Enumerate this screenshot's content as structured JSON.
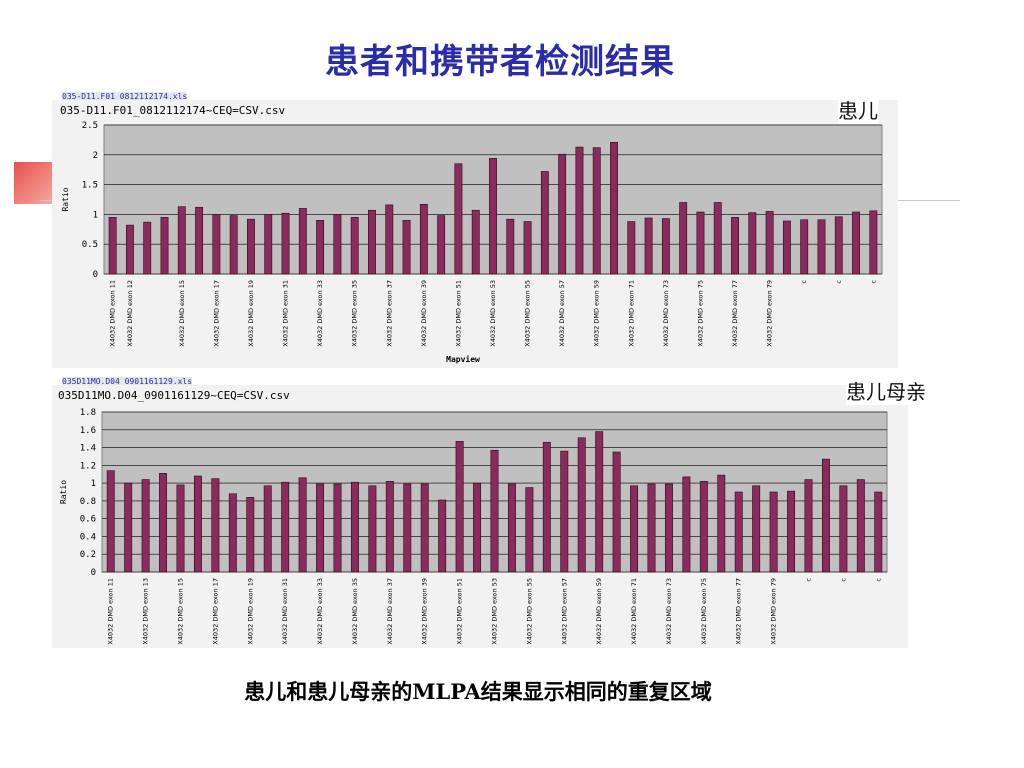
{
  "slide": {
    "title": "患者和携带者检测结果",
    "caption": "患儿和患儿母亲的MLPA结果显示相同的重复区域"
  },
  "colors": {
    "title": "#2b2ca8",
    "bar": "#8b2a5c",
    "plot_bg": "#c0c0c0"
  },
  "chart_data": [
    {
      "type": "bar",
      "panel_label": "患儿",
      "file_tab": "035-D11.F01_0812112174.xls",
      "title": "035-D11.F01_0812112174~CEQ=CSV.csv",
      "xlabel": "Mapview",
      "ylabel": "Ratio",
      "ylim": [
        0,
        2.5
      ],
      "yticks": [
        "0",
        "0.5",
        "1",
        "1.5",
        "2",
        "2.5"
      ],
      "categories": [
        "X4032 DMD exon 11",
        "X4032 DMD exon 12",
        "",
        "",
        "X4032 DMD exon 15",
        "",
        "X4032 DMD exon 17",
        "",
        "X4032 DMD exon 19",
        "",
        "X4032 DMD exon 31",
        "",
        "X4032 DMD exon 33",
        "",
        "X4032 DMD exon 35",
        "",
        "X4032 DMD exon 37",
        "",
        "X4032 DMD exon 39",
        "",
        "X4032 DMD exon 51",
        "",
        "X4032 DMD exon 53",
        "",
        "X4032 DMD exon 55",
        "",
        "X4032 DMD exon 57",
        "",
        "X4032 DMD exon 59",
        "",
        "X4032 DMD exon 71",
        "",
        "X4032 DMD exon 73",
        "",
        "X4032 DMD exon 75",
        "",
        "X4032 DMD exon 77",
        "",
        "X4032 DMD exon 79",
        "",
        "c",
        "",
        "c",
        "",
        "c"
      ],
      "values": [
        0.95,
        0.82,
        0.87,
        0.95,
        1.13,
        1.12,
        1.0,
        0.98,
        0.92,
        1.0,
        1.02,
        1.1,
        0.9,
        1.0,
        0.95,
        1.07,
        1.16,
        0.9,
        1.17,
        0.98,
        1.85,
        1.07,
        1.94,
        0.92,
        0.88,
        1.72,
        2.01,
        2.13,
        2.12,
        2.21,
        0.88,
        0.94,
        0.93,
        1.2,
        1.04,
        1.2,
        0.95,
        1.03,
        1.05,
        0.89,
        0.91,
        0.91,
        0.96,
        1.04,
        1.06
      ]
    },
    {
      "type": "bar",
      "panel_label": "患儿母亲",
      "file_tab": "035D11MO.D04_0901161129.xls",
      "title": "035D11MO.D04_0901161129~CEQ=CSV.csv",
      "xlabel": "",
      "ylabel": "Ratio",
      "ylim": [
        0,
        1.8
      ],
      "yticks": [
        "0",
        "0.2",
        "0.4",
        "0.6",
        "0.8",
        "1",
        "1.2",
        "1.4",
        "1.6",
        "1.8"
      ],
      "categories": [
        "X4032 DMD exon 11",
        "",
        "X4032 DMD exon 13",
        "",
        "X4032 DMD exon 15",
        "",
        "X4032 DMD exon 17",
        "",
        "X4032 DMD exon 19",
        "",
        "X4032 DMD exon 31",
        "",
        "X4032 DMD exon 33",
        "",
        "X4032 DMD exon 35",
        "",
        "X4032 DMD exon 37",
        "",
        "X4032 DMD exon 39",
        "",
        "X4032 DMD exon 51",
        "",
        "X4032 DMD exon 53",
        "",
        "X4032 DMD exon 55",
        "",
        "X4032 DMD exon 57",
        "",
        "X4032 DMD exon 59",
        "",
        "X4032 DMD exon 71",
        "",
        "X4032 DMD exon 73",
        "",
        "X4032 DMD exon 75",
        "",
        "X4032 DMD exon 77",
        "",
        "X4032 DMD exon 79",
        "",
        "c",
        "",
        "c",
        "",
        "c"
      ],
      "values": [
        1.14,
        1.0,
        1.04,
        1.11,
        0.98,
        1.08,
        1.05,
        0.88,
        0.84,
        0.97,
        1.01,
        1.06,
        0.99,
        0.99,
        1.01,
        0.97,
        1.02,
        0.99,
        0.99,
        0.81,
        1.47,
        1.0,
        1.37,
        0.99,
        0.95,
        1.46,
        1.36,
        1.51,
        1.58,
        1.35,
        0.97,
        0.99,
        0.99,
        1.07,
        1.02,
        1.09,
        0.9,
        0.97,
        0.9,
        0.91,
        1.04,
        1.27,
        0.97,
        1.04,
        0.9
      ]
    }
  ]
}
